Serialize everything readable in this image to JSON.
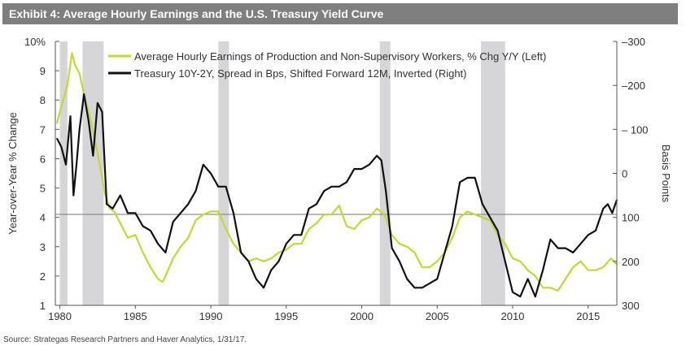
{
  "header": {
    "title": "Exhibit 4: Average Hourly Earnings and the U.S. Treasury Yield Curve"
  },
  "footer": {
    "source": "Source: Strategas Research Partners and Haver Analytics, 1/31/17."
  },
  "colors": {
    "header_bg": "#7f7f80",
    "earnings": "#c5d92d",
    "treasury": "#111111",
    "recession": "#d6d6d8",
    "axis": "#555555"
  },
  "chart_data": {
    "type": "line",
    "ylabel_left": "Year-over-Year % Change",
    "ylabel_right": "Basis Points",
    "xlabel": "",
    "xlim": [
      1979.7,
      2016.9
    ],
    "ylim_left": [
      1,
      10
    ],
    "ylim_right": [
      -300,
      300
    ],
    "right_axis_inverted": true,
    "grid": false,
    "legend_position": "top",
    "x_ticks": [
      1980,
      1985,
      1990,
      1995,
      2000,
      2005,
      2010,
      2015
    ],
    "y_ticks_left": [
      {
        "value": 1,
        "label": "1"
      },
      {
        "value": 2,
        "label": "2"
      },
      {
        "value": 3,
        "label": "3"
      },
      {
        "value": 4,
        "label": "4"
      },
      {
        "value": 5,
        "label": "5"
      },
      {
        "value": 6,
        "label": "6"
      },
      {
        "value": 7,
        "label": "7"
      },
      {
        "value": 8,
        "label": "8"
      },
      {
        "value": 9,
        "label": "9"
      },
      {
        "value": 10,
        "label": "10%"
      }
    ],
    "y_ticks_right": [
      {
        "value": -300,
        "label": "–300"
      },
      {
        "value": -200,
        "label": "–200"
      },
      {
        "value": -100,
        "label": "– 100"
      },
      {
        "value": 0,
        "label": "0"
      },
      {
        "value": 100,
        "label": "100"
      },
      {
        "value": 200,
        "label": "200"
      },
      {
        "value": 300,
        "label": "300"
      }
    ],
    "reference_line": {
      "axis": "left",
      "value": 4.1
    },
    "recessions": [
      [
        1980.0,
        1980.5
      ],
      [
        1981.5,
        1982.9
      ],
      [
        1990.5,
        1991.2
      ],
      [
        2001.2,
        2001.9
      ],
      [
        2007.9,
        2009.5
      ]
    ],
    "series": [
      {
        "name": "Average Hourly Earnings of Production and Non-Supervisory Workers, % Chg Y/Y (Left)",
        "axis": "left",
        "x": [
          1979.8,
          1980.0,
          1980.5,
          1980.8,
          1981.0,
          1981.3,
          1981.6,
          1982.0,
          1982.5,
          1983.0,
          1983.3,
          1983.6,
          1984.0,
          1984.5,
          1985.0,
          1985.5,
          1986.0,
          1986.5,
          1986.8,
          1987.0,
          1987.5,
          1988.0,
          1988.5,
          1989.0,
          1989.5,
          1990.0,
          1990.5,
          1991.0,
          1991.5,
          1992.0,
          1992.5,
          1993.0,
          1993.5,
          1994.0,
          1994.5,
          1995.0,
          1995.5,
          1996.0,
          1996.5,
          1997.0,
          1997.5,
          1998.0,
          1998.5,
          1999.0,
          1999.5,
          2000.0,
          2000.5,
          2001.0,
          2001.5,
          2002.0,
          2002.5,
          2003.0,
          2003.5,
          2004.0,
          2004.5,
          2005.0,
          2005.5,
          2006.0,
          2006.5,
          2007.0,
          2007.5,
          2008.0,
          2008.5,
          2009.0,
          2009.5,
          2010.0,
          2010.5,
          2011.0,
          2011.5,
          2012.0,
          2012.5,
          2013.0,
          2013.5,
          2014.0,
          2014.5,
          2015.0,
          2015.5,
          2016.0,
          2016.5,
          2016.9
        ],
        "values": [
          7.2,
          7.6,
          8.5,
          9.6,
          9.2,
          8.9,
          8.2,
          7.4,
          6.2,
          4.8,
          4.3,
          4.2,
          3.8,
          3.3,
          3.4,
          2.8,
          2.3,
          1.9,
          1.8,
          2.0,
          2.6,
          3.0,
          3.3,
          3.9,
          4.1,
          4.2,
          4.2,
          3.6,
          3.1,
          2.8,
          2.5,
          2.6,
          2.5,
          2.6,
          2.8,
          2.9,
          3.1,
          3.1,
          3.6,
          3.8,
          4.1,
          4.1,
          4.4,
          3.7,
          3.6,
          3.9,
          4.0,
          4.3,
          4.1,
          3.4,
          3.1,
          3.0,
          2.8,
          2.3,
          2.3,
          2.5,
          2.8,
          3.3,
          4.0,
          4.2,
          4.1,
          4.0,
          3.9,
          3.4,
          3.1,
          2.6,
          2.5,
          2.2,
          2.0,
          1.6,
          1.6,
          1.5,
          1.9,
          2.3,
          2.5,
          2.2,
          2.2,
          2.3,
          2.6,
          2.4
        ]
      },
      {
        "name": "Treasury 10Y-2Y, Spread in Bps, Shifted Forward 12M, Inverted (Right)",
        "axis": "right",
        "x": [
          1979.8,
          1980.1,
          1980.4,
          1980.7,
          1980.9,
          1981.1,
          1981.3,
          1981.6,
          1981.9,
          1982.2,
          1982.5,
          1982.8,
          1983.1,
          1983.5,
          1984.0,
          1984.5,
          1985.0,
          1985.5,
          1986.0,
          1986.5,
          1987.0,
          1987.5,
          1988.0,
          1988.5,
          1989.0,
          1989.5,
          1990.0,
          1990.5,
          1991.0,
          1991.5,
          1992.0,
          1992.5,
          1993.0,
          1993.5,
          1994.0,
          1994.5,
          1995.0,
          1995.5,
          1996.0,
          1996.5,
          1997.0,
          1997.5,
          1998.0,
          1998.5,
          1999.0,
          1999.5,
          2000.0,
          2000.5,
          2001.0,
          2001.3,
          2001.6,
          2002.0,
          2002.5,
          2003.0,
          2003.5,
          2004.0,
          2004.5,
          2005.0,
          2005.5,
          2006.0,
          2006.5,
          2007.0,
          2007.5,
          2008.0,
          2008.5,
          2009.0,
          2009.5,
          2010.0,
          2010.5,
          2011.0,
          2011.5,
          2012.0,
          2012.5,
          2013.0,
          2013.5,
          2014.0,
          2014.5,
          2015.0,
          2015.5,
          2016.0,
          2016.3,
          2016.6,
          2016.9
        ],
        "values": [
          -80,
          -60,
          -20,
          -130,
          50,
          -20,
          -100,
          -180,
          -120,
          -40,
          -160,
          -140,
          70,
          80,
          50,
          90,
          90,
          120,
          130,
          160,
          180,
          110,
          90,
          70,
          40,
          -20,
          0,
          30,
          30,
          90,
          180,
          200,
          240,
          260,
          220,
          200,
          160,
          140,
          140,
          80,
          70,
          40,
          30,
          30,
          20,
          -10,
          -10,
          -20,
          -40,
          -30,
          40,
          170,
          200,
          240,
          260,
          260,
          250,
          240,
          180,
          120,
          20,
          10,
          10,
          70,
          100,
          130,
          200,
          270,
          280,
          240,
          280,
          220,
          150,
          170,
          170,
          180,
          160,
          140,
          130,
          80,
          70,
          90,
          60
        ]
      }
    ]
  }
}
